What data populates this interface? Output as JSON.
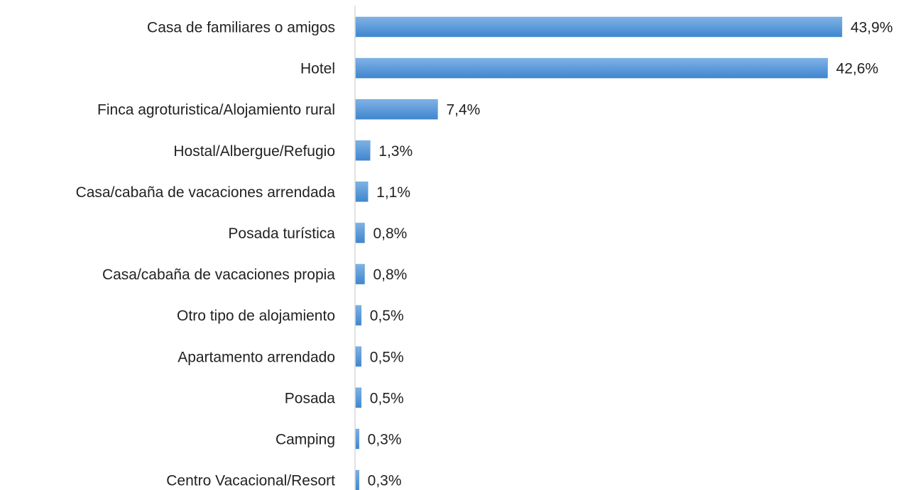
{
  "chart_data": {
    "type": "hbar",
    "categories": [
      "Casa de familiares o amigos",
      "Hotel",
      "Finca agroturistica/Alojamiento rural",
      "Hostal/Albergue/Refugio",
      "Casa/cabaña de vacaciones arrendada",
      "Posada turística",
      "Casa/cabaña de vacaciones propia",
      "Otro tipo de alojamiento",
      "Apartamento arrendado",
      "Posada",
      "Camping",
      "Centro Vacacional/Resort"
    ],
    "values": [
      43.9,
      42.6,
      7.4,
      1.3,
      1.1,
      0.8,
      0.8,
      0.5,
      0.5,
      0.5,
      0.3,
      0.3
    ],
    "value_labels": [
      "43,9%",
      "42,6%",
      "7,4%",
      "1,3%",
      "1,1%",
      "0,8%",
      "0,8%",
      "0,5%",
      "0,5%",
      "0,5%",
      "0,3%",
      "0,3%"
    ],
    "color": "#5b9bd5",
    "xlim": [
      0,
      45
    ]
  }
}
